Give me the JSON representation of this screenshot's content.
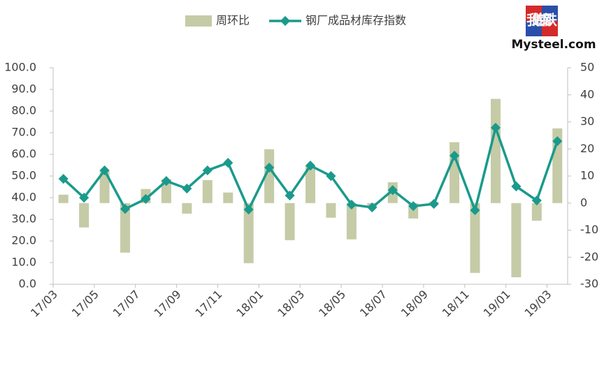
{
  "logo": {
    "cn": "我的钢铁",
    "en": "Mysteel.com"
  },
  "chart_data": {
    "type": "bar-line",
    "categories": [
      "17/03",
      null,
      "17/05",
      null,
      "17/07",
      null,
      "17/09",
      null,
      "17/11",
      null,
      "18/01",
      null,
      "18/03",
      null,
      "18/05",
      null,
      "18/07",
      null,
      "18/09",
      null,
      "18/11",
      null,
      "19/01",
      null,
      "19/03"
    ],
    "series": [
      {
        "name": "周环比",
        "type": "bar",
        "axis": "y2",
        "color": "#c5cba6",
        "values": [
          3.1,
          -9.0,
          12.1,
          -18.3,
          5.2,
          8.8,
          -3.9,
          8.5,
          3.9,
          -22.2,
          19.9,
          -13.7,
          13.9,
          -5.4,
          -13.4,
          -1.5,
          7.7,
          -5.7,
          0.5,
          22.5,
          -25.8,
          38.5,
          -27.4,
          -6.5,
          27.6
        ]
      },
      {
        "name": "钢厂成品材库存指数",
        "type": "line",
        "axis": "y",
        "color": "#1a9a8c",
        "values": [
          48.7,
          40.0,
          52.6,
          34.8,
          39.4,
          47.7,
          44.2,
          52.6,
          56.1,
          34.5,
          53.9,
          41.0,
          54.8,
          50.0,
          36.8,
          35.5,
          43.5,
          36.1,
          37.1,
          59.4,
          34.2,
          72.3,
          45.2,
          38.7,
          66.1
        ]
      }
    ],
    "ylim": [
      0,
      100
    ],
    "yticks": [
      {
        "value": 0,
        "label": "0.0"
      },
      {
        "value": 10,
        "label": "10.0"
      },
      {
        "value": 20,
        "label": "20.0"
      },
      {
        "value": 30,
        "label": "30.0"
      },
      {
        "value": 40,
        "label": "40.0"
      },
      {
        "value": 50,
        "label": "50.0"
      },
      {
        "value": 60,
        "label": "60.0"
      },
      {
        "value": 70,
        "label": "70.0"
      },
      {
        "value": 80,
        "label": "80.0"
      },
      {
        "value": 90,
        "label": "90.0"
      },
      {
        "value": 100,
        "label": "100.0"
      }
    ],
    "y2lim": [
      -30,
      50
    ],
    "y2ticks": [
      -30,
      -20,
      -10,
      0,
      10,
      20,
      30,
      40,
      50
    ],
    "legend": "top"
  }
}
